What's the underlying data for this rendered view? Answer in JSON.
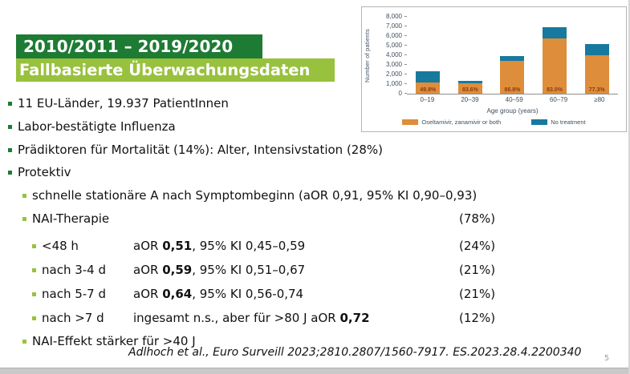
{
  "header": {
    "line1": "2010/2011 – 2019/2020",
    "line2": "Fallbasierte Überwachungsdaten"
  },
  "bullets": {
    "l1": [
      "11 EU-Länder, 19.937 PatientInnen",
      "Labor-bestätigte Influenza",
      "Prädiktoren für Mortalität (14%): Alter, Intensivstation (28%)",
      "Protektiv"
    ],
    "l2_schnelle": "schnelle stationäre A nach Symptombeginn (aOR 0,91, 95% KI 0,90–0,93)",
    "l2_nai_label": "NAI-Therapie",
    "l2_nai_pct": "(78%)",
    "l2_effekt": "NAI-Effekt stärker für >40 J"
  },
  "nai_rows": [
    {
      "label": "<48 h",
      "prefix": "aOR ",
      "bold": "0,51",
      "suffix": ", 95% KI 0,45–0,59",
      "pct": "(24%)"
    },
    {
      "label": "nach 3-4 d",
      "prefix": "aOR ",
      "bold": "0,59",
      "suffix": ", 95% KI 0,51–0,67",
      "pct": "(21%)"
    },
    {
      "label": "nach 5-7 d",
      "prefix": "aOR ",
      "bold": "0,64",
      "suffix": ", 95% KI 0,56-0,74",
      "pct": "(21%)"
    },
    {
      "label": "nach >7 d",
      "prefix": "ingesamt n.s., aber für >80 J aOR ",
      "bold": "0,72",
      "suffix": "",
      "pct": "(12%)"
    }
  ],
  "footer": {
    "citation": "Adlhoch et al., Euro Surveill 2023;2810.2807/1560-7917. ES.2023.28.4.2200340",
    "page_number": "5"
  },
  "colors": {
    "dark_green": "#1e7b33",
    "light_green": "#98c13d",
    "chart_orange": "#de8d3a",
    "chart_teal": "#17799e",
    "bar_label_red": "#8a3c15"
  },
  "chart_data": {
    "type": "bar",
    "stacked": true,
    "title": "",
    "categories": [
      "0–19",
      "20–39",
      "40–59",
      "60–79",
      "≥80"
    ],
    "series": [
      {
        "name": "Oseltamivir, zanamivir or both",
        "color": "#de8d3a",
        "values": [
          1170,
          1110,
          3385,
          5725,
          3980
        ]
      },
      {
        "name": "No treatment",
        "color": "#17799e",
        "values": [
          1180,
          220,
          515,
          1175,
          1170
        ]
      }
    ],
    "bar_labels": [
      "49.8%",
      "83.6%",
      "86.8%",
      "83.0%",
      "77.3%"
    ],
    "xlabel": "Age group (years)",
    "ylabel": "Number of patients",
    "ylim": [
      0,
      8000
    ],
    "ytick_step": 1000,
    "yticks": [
      "0",
      "1,000",
      "2,000",
      "3,000",
      "4,000",
      "5,000",
      "6,000",
      "7,000",
      "8,000"
    ],
    "grid": false,
    "legend_position": "bottom"
  }
}
